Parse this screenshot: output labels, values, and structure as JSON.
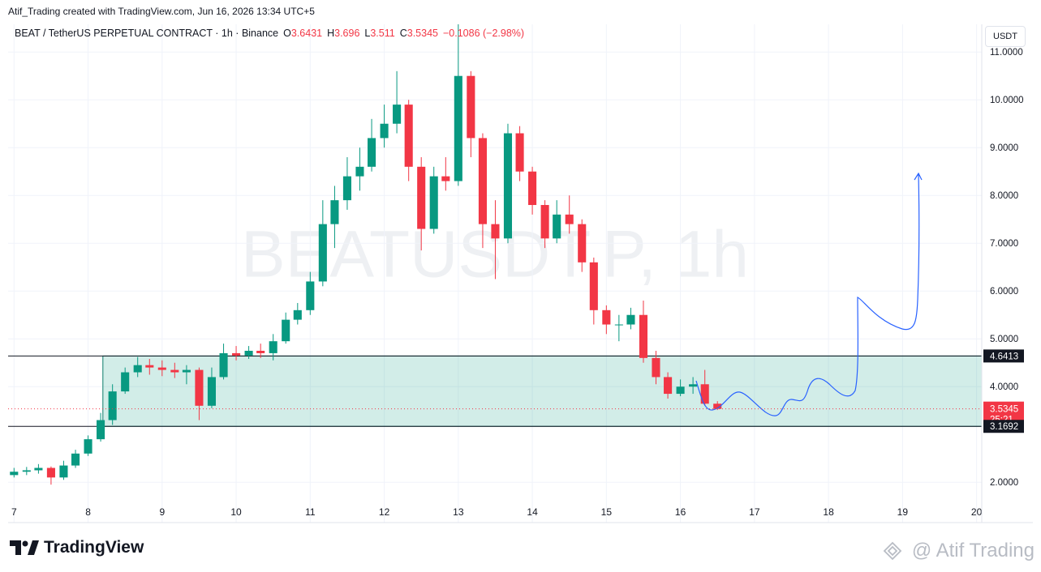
{
  "header": "Atif_Trading created with TradingView.com, Jun 16, 2026 13:34 UTC+5",
  "brand": "TradingView",
  "author_watermark": "@ Atif Trading",
  "chart_data": {
    "type": "candlestick",
    "symbol": "BEAT / TetherUS PERPETUAL CONTRACT · 1h · Binance",
    "ohlc_labels": [
      "O",
      "H",
      "L",
      "C"
    ],
    "change_label": "−0.1086 (−2.98%)",
    "watermark": "BEATUSDT.P, 1h",
    "currency": "USDT",
    "countdown": "25:21",
    "up_color": "#089981",
    "down_color": "#f23645",
    "grid": true,
    "x": [
      7,
      7.17,
      7.33,
      7.5,
      7.67,
      7.83,
      8,
      8.17,
      8.33,
      8.5,
      8.67,
      8.83,
      9,
      9.17,
      9.33,
      9.5,
      9.67,
      9.83,
      10,
      10.17,
      10.33,
      10.5,
      10.67,
      10.83,
      11,
      11.17,
      11.33,
      11.5,
      11.67,
      11.83,
      12,
      12.17,
      12.33,
      12.5,
      12.67,
      12.83,
      13,
      13.17,
      13.33,
      13.5,
      13.67,
      13.83,
      14,
      14.17,
      14.33,
      14.5,
      14.67,
      14.83,
      15,
      15.17,
      15.33,
      15.5,
      15.67,
      15.83,
      16,
      16.17,
      16.33,
      16.5
    ],
    "open": [
      2.15,
      2.22,
      2.25,
      2.3,
      2.1,
      2.35,
      2.6,
      2.9,
      3.3,
      3.9,
      4.3,
      4.45,
      4.4,
      4.35,
      4.3,
      4.35,
      3.6,
      4.2,
      4.7,
      4.65,
      4.75,
      4.7,
      4.95,
      5.4,
      5.6,
      6.2,
      7.4,
      7.9,
      8.4,
      8.6,
      9.2,
      9.5,
      9.9,
      8.6,
      7.3,
      8.4,
      8.3,
      10.5,
      9.2,
      7.4,
      7.1,
      9.3,
      8.5,
      7.8,
      7.1,
      7.6,
      7.4,
      6.6,
      5.6,
      5.3,
      5.3,
      5.5,
      4.6,
      4.2,
      3.85,
      4.0,
      4.05,
      3.6431
    ],
    "high": [
      2.3,
      2.32,
      2.38,
      2.33,
      2.45,
      2.68,
      2.98,
      3.45,
      4.05,
      4.4,
      4.62,
      4.58,
      4.55,
      4.5,
      4.45,
      4.4,
      4.4,
      4.9,
      4.85,
      4.85,
      4.9,
      5.1,
      5.55,
      5.75,
      6.4,
      7.9,
      8.2,
      8.8,
      9.0,
      9.6,
      9.9,
      10.6,
      10.0,
      8.8,
      8.6,
      8.8,
      11.58,
      10.6,
      9.3,
      7.9,
      9.5,
      9.45,
      8.6,
      7.9,
      7.9,
      8.0,
      7.5,
      6.7,
      5.7,
      5.5,
      5.65,
      5.8,
      4.75,
      4.3,
      4.15,
      4.2,
      4.35,
      3.696
    ],
    "low": [
      2.1,
      2.15,
      2.18,
      1.95,
      2.05,
      2.3,
      2.55,
      2.85,
      3.2,
      3.85,
      4.2,
      4.25,
      4.22,
      4.18,
      4.05,
      3.3,
      3.55,
      4.15,
      4.55,
      4.58,
      4.6,
      4.55,
      4.9,
      5.3,
      5.5,
      6.1,
      6.9,
      7.7,
      8.1,
      8.5,
      9.0,
      9.3,
      8.3,
      6.85,
      7.2,
      8.1,
      8.2,
      8.8,
      6.9,
      6.25,
      7.0,
      8.3,
      7.6,
      6.9,
      7.0,
      7.2,
      6.4,
      5.3,
      5.1,
      4.95,
      5.2,
      4.5,
      4.05,
      3.75,
      3.8,
      3.85,
      3.6,
      3.511
    ],
    "close": [
      2.22,
      2.25,
      2.3,
      2.1,
      2.35,
      2.6,
      2.9,
      3.3,
      3.9,
      4.3,
      4.45,
      4.4,
      4.35,
      4.3,
      4.35,
      3.6,
      4.2,
      4.7,
      4.65,
      4.75,
      4.7,
      4.95,
      5.4,
      5.6,
      6.2,
      7.4,
      7.9,
      8.4,
      8.6,
      9.2,
      9.5,
      9.9,
      8.6,
      7.3,
      8.4,
      8.3,
      10.5,
      9.2,
      7.4,
      7.1,
      9.3,
      8.5,
      7.8,
      7.1,
      7.6,
      7.4,
      6.6,
      5.6,
      5.3,
      5.3,
      5.5,
      4.6,
      4.2,
      3.85,
      4.0,
      4.05,
      3.6431,
      3.5345
    ],
    "zone": {
      "top": 4.6413,
      "bottom": 3.1692,
      "start": 8.2
    },
    "xlim": [
      6.92,
      20.07
    ],
    "ylim": [
      1.58,
      11.58
    ],
    "xticks": [
      7,
      8,
      9,
      10,
      11,
      12,
      13,
      14,
      15,
      16,
      17,
      18,
      19,
      20
    ],
    "yticks": [
      {
        "value": 2,
        "label": "2.0000"
      },
      {
        "value": 4,
        "label": "4.0000"
      },
      {
        "value": 5,
        "label": "5.0000"
      },
      {
        "value": 6,
        "label": "6.0000"
      },
      {
        "value": 7,
        "label": "7.0000"
      },
      {
        "value": 8,
        "label": "8.0000"
      },
      {
        "value": 9,
        "label": "9.0000"
      },
      {
        "value": 10,
        "label": "10.0000"
      },
      {
        "value": 11,
        "label": "11.0000"
      }
    ]
  }
}
